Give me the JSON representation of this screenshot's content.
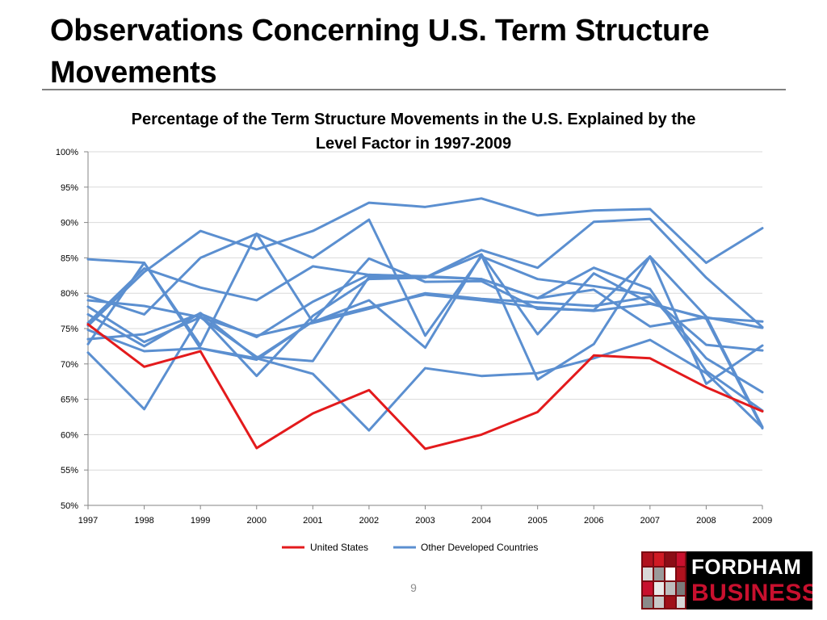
{
  "slide": {
    "title": "Observations Concerning U.S. Term Structure Movements",
    "page_number": "9"
  },
  "logo": {
    "word1": "FORDHAM",
    "word2": "BUSINESS"
  },
  "colors": {
    "us": "#e31a1c",
    "other": "#5b8fd0",
    "grid": "#d9d9d9",
    "axis": "#868686",
    "logo_red": "#c8102e"
  },
  "chart_data": {
    "type": "line",
    "title": "Percentage of the Term Structure Movements in the U.S. Explained by the Level Factor in 1997-2009",
    "xlabel": "",
    "ylabel": "",
    "x": [
      1997,
      1998,
      1999,
      2000,
      2001,
      2002,
      2003,
      2004,
      2005,
      2006,
      2007,
      2008,
      2009
    ],
    "ylim": [
      50,
      100
    ],
    "y_ticks": [
      50,
      55,
      60,
      65,
      70,
      75,
      80,
      85,
      90,
      95,
      100
    ],
    "y_tick_labels": [
      "50%",
      "55%",
      "60%",
      "65%",
      "70%",
      "75%",
      "80%",
      "85%",
      "90%",
      "95%",
      "100%"
    ],
    "grid": true,
    "legend_position": "bottom",
    "legend": [
      {
        "name": "United States",
        "style": "us"
      },
      {
        "name": "Other Developed Countries",
        "style": "other"
      }
    ],
    "series": [
      {
        "name": "United States",
        "style": "us",
        "values": [
          75.6,
          69.6,
          71.8,
          58.1,
          63.0,
          66.3,
          58.0,
          60.0,
          63.2,
          71.2,
          70.8,
          66.7,
          63.3
        ]
      },
      {
        "name": "Other Developed Countries",
        "style": "other",
        "values": [
          84.8,
          84.3,
          72.6,
          88.4,
          75.9,
          79.0,
          72.3,
          85.4,
          67.8,
          72.8,
          85.2,
          67.2,
          72.6
        ]
      },
      {
        "name": "Other Developed Countries",
        "style": "other",
        "values": [
          79.6,
          77.0,
          85.0,
          88.4,
          85.0,
          90.4,
          74.0,
          85.2,
          82.0,
          81.0,
          79.8,
          70.8,
          66.0
        ]
      },
      {
        "name": "Other Developed Countries",
        "style": "other",
        "values": [
          75.4,
          83.0,
          88.8,
          86.2,
          88.8,
          92.8,
          92.2,
          93.4,
          91.0,
          91.7,
          91.9,
          84.3,
          89.2
        ]
      },
      {
        "name": "Other Developed Countries",
        "style": "other",
        "values": [
          73.5,
          74.2,
          77.1,
          73.8,
          78.8,
          82.6,
          82.4,
          82.0,
          79.3,
          80.5,
          75.3,
          76.6,
          75.1
        ]
      },
      {
        "name": "Other Developed Countries",
        "style": "other",
        "values": [
          72.8,
          84.3,
          72.2,
          70.6,
          76.0,
          84.9,
          81.6,
          81.7,
          77.8,
          77.6,
          85.2,
          76.7,
          61.1
        ]
      },
      {
        "name": "Other Developed Countries",
        "style": "other",
        "values": [
          71.6,
          63.6,
          76.8,
          68.3,
          76.8,
          82.0,
          82.2,
          86.1,
          83.6,
          90.1,
          90.5,
          82.2,
          75.2
        ]
      },
      {
        "name": "Other Developed Countries",
        "style": "other",
        "values": [
          78.1,
          73.1,
          76.6,
          71.0,
          70.4,
          82.3,
          82.2,
          85.5,
          74.2,
          82.8,
          78.6,
          76.4,
          60.9
        ]
      },
      {
        "name": "Other Developed Countries",
        "style": "other",
        "values": [
          79.0,
          78.2,
          76.6,
          74.0,
          75.8,
          77.8,
          80.0,
          79.2,
          78.7,
          78.2,
          79.5,
          72.7,
          71.9
        ]
      },
      {
        "name": "Other Developed Countries",
        "style": "other",
        "values": [
          75.8,
          83.5,
          80.8,
          79.0,
          83.8,
          82.6,
          82.3,
          82.0,
          79.3,
          83.6,
          80.6,
          69.0,
          63.4
        ]
      },
      {
        "name": "Other Developed Countries",
        "style": "other",
        "values": [
          74.8,
          71.8,
          72.2,
          70.8,
          68.6,
          60.6,
          69.4,
          68.3,
          68.7,
          70.8,
          73.4,
          68.7,
          61.0
        ]
      },
      {
        "name": "Other Developed Countries",
        "style": "other",
        "values": [
          77.0,
          72.5,
          77.2,
          70.8,
          76.0,
          78.0,
          79.8,
          79.0,
          78.0,
          77.5,
          78.5,
          76.5,
          76.0
        ]
      }
    ]
  }
}
